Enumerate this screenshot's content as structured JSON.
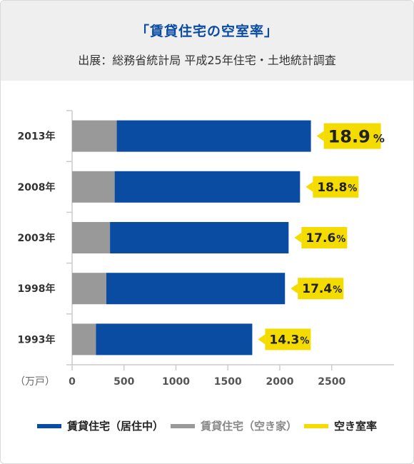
{
  "header": {
    "title": "「賃貸住宅の空室率」",
    "source": "出展：総務省統計局 平成25年住宅・土地統計調査"
  },
  "colors": {
    "occupied": "#0b4ca3",
    "vacant": "#999999",
    "rate": "#f5dc00",
    "axis": "#cccccc",
    "text": "#333333"
  },
  "chart_data": {
    "type": "bar",
    "orientation": "horizontal",
    "stacked": true,
    "categories": [
      "2013年",
      "2008年",
      "2003年",
      "1998年",
      "1993年"
    ],
    "series": [
      {
        "name": "賃貸住宅（空き家）",
        "values": [
          430,
          410,
          365,
          330,
          230
        ]
      },
      {
        "name": "賃貸住宅（居住中）",
        "values": [
          1870,
          1785,
          1720,
          1720,
          1505
        ]
      }
    ],
    "vacancy_rate": {
      "name": "空き室率",
      "values": [
        18.9,
        18.8,
        17.6,
        17.4,
        14.3
      ],
      "labels": [
        "18.9",
        "18.8",
        "17.6",
        "17.4",
        "14.3"
      ],
      "unit": "%"
    },
    "xlim": [
      0,
      3100
    ],
    "xticks": [
      0,
      500,
      1000,
      1500,
      2000,
      2500
    ],
    "xunit": "（万戸）",
    "legend_position": "bottom"
  },
  "legend": {
    "occupied_label": "賃貸住宅（居住中）",
    "vacant_label": "賃貸住宅（空き家）",
    "rate_label": "空き室率"
  }
}
